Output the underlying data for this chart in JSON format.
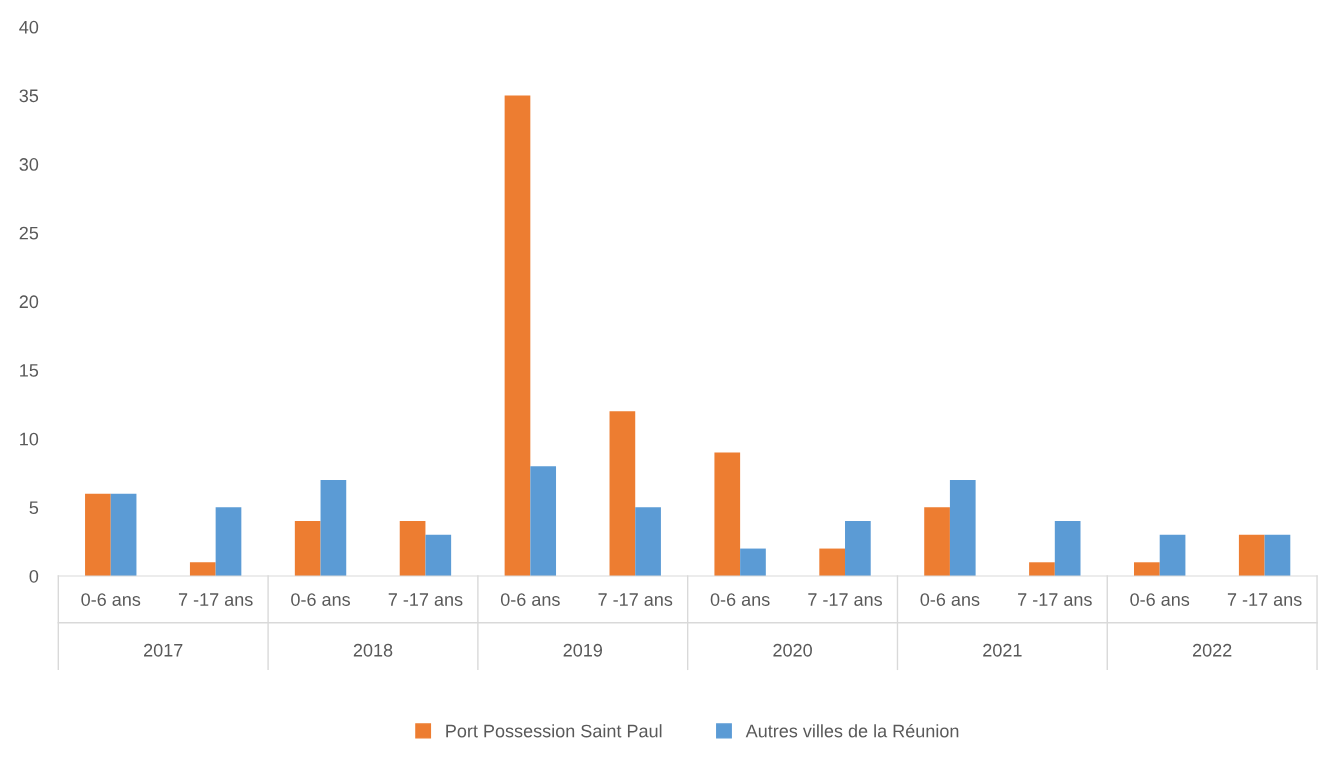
{
  "chart_data": {
    "type": "bar",
    "categories": [
      "0-6 ans",
      "7 -17 ans",
      "0-6 ans",
      "7 -17 ans",
      "0-6 ans",
      "7 -17 ans",
      "0-6 ans",
      "7 -17 ans",
      "0-6 ans",
      "7 -17 ans",
      "0-6 ans",
      "7 -17 ans"
    ],
    "series": [
      {
        "name": "Port Possession Saint Paul",
        "color": "#ed7d31",
        "values": [
          6,
          1,
          4,
          4,
          35,
          12,
          9,
          2,
          5,
          1,
          1,
          3
        ]
      },
      {
        "name": "Autres villes de la Réunion",
        "color": "#5b9bd5",
        "values": [
          6,
          5,
          7,
          3,
          8,
          5,
          2,
          4,
          7,
          4,
          3,
          3
        ]
      }
    ],
    "annotations": [
      "2017",
      "2018",
      "2019",
      "2020",
      "2021",
      "2022"
    ],
    "ylim": [
      0,
      40
    ],
    "yticks": [
      0,
      5,
      10,
      15,
      20,
      25,
      30,
      35,
      40
    ],
    "grid": false,
    "legend": "bottom"
  }
}
